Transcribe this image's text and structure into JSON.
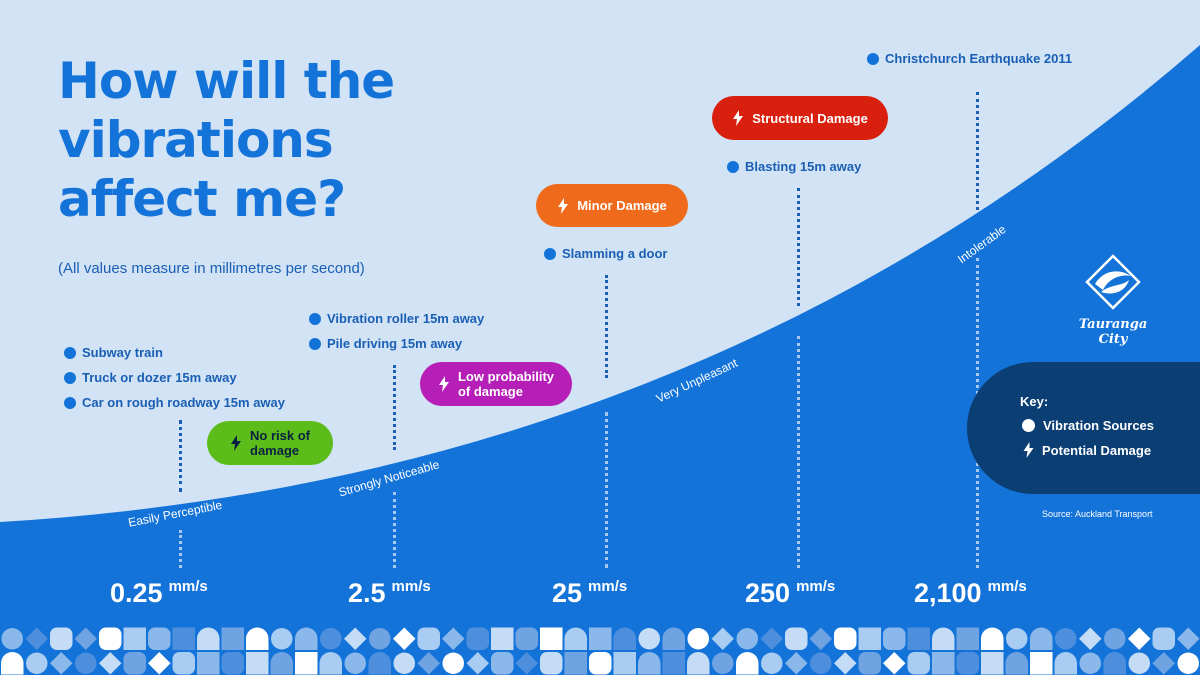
{
  "title_lines": [
    "How will the",
    "vibrations",
    "affect me?"
  ],
  "subtitle": "(All values measure in millimetres per second)",
  "vibration_sources": {
    "subway_train": "Subway train",
    "truck_or_dozer": "Truck or dozer 15m away",
    "car_rough_road": "Car on rough roadway 15m away",
    "vibration_roller": "Vibration roller 15m away",
    "pile_driving": "Pile driving 15m away",
    "slamming_door": "Slamming a door",
    "blasting": "Blasting 15m away",
    "christchurch_quake": "Christchurch Earthquake 2011"
  },
  "damage_levels": {
    "no_risk": {
      "line1": "No risk of",
      "line2": "damage",
      "color": "#5cbc1a"
    },
    "low_probability": {
      "line1": "Low probability",
      "line2": "of damage",
      "color": "#b51fb8"
    },
    "minor": {
      "label": "Minor Damage",
      "color": "#f06a1b"
    },
    "structural": {
      "label": "Structural Damage",
      "color": "#d9200f"
    }
  },
  "perception_levels": [
    "Easily Perceptible",
    "Strongly Noticeable",
    "Very Unpleasant",
    "Intolerable"
  ],
  "values": [
    {
      "number": "0.25",
      "unit": "mm/s"
    },
    {
      "number": "2.5",
      "unit": "mm/s"
    },
    {
      "number": "25",
      "unit": "mm/s"
    },
    {
      "number": "250",
      "unit": "mm/s"
    },
    {
      "number": "2,100",
      "unit": "mm/s"
    }
  ],
  "key": {
    "title": "Key:",
    "vibration_sources": "Vibration Sources",
    "potential_damage": "Potential Damage"
  },
  "logo_text": "Tauranga City",
  "source_note": "Source: Auckland Transport",
  "colors": {
    "background_light": "#d2e3f6",
    "curve_fill": "#1473d9",
    "title_blue": "#1473d9",
    "key_box": "#0b3e73"
  }
}
